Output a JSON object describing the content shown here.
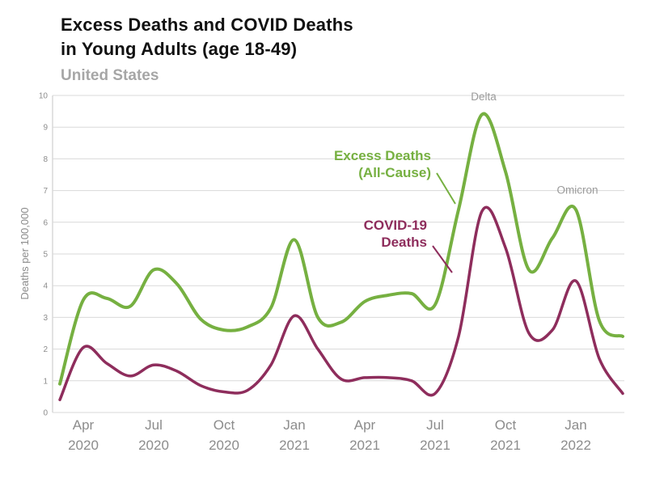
{
  "header": {
    "title_line1": "Excess Deaths and COVID Deaths",
    "title_line2": "in Young Adults (age 18-49)",
    "subtitle": "United States"
  },
  "colors": {
    "excess": "#76b041",
    "covid": "#8e2d5c",
    "grid": "#d9d9d9",
    "axis_text": "#8c8c8c",
    "annotation_text": "#9a9a9a",
    "title_text": "#111111",
    "subtitle_text": "#a6a6a6"
  },
  "legend": {
    "excess_line1": "Excess Deaths",
    "excess_line2": "(All-Cause)",
    "covid_line1": "COVID-19",
    "covid_line2": "Deaths"
  },
  "chart_data": {
    "type": "line",
    "title": "Excess Deaths and COVID Deaths in Young Adults (age 18-49)",
    "subtitle": "United States",
    "xlabel": "",
    "ylabel": "Deaths per 100,000",
    "ylim": [
      0,
      10
    ],
    "y_ticks": [
      0,
      1,
      2,
      3,
      4,
      5,
      6,
      7,
      8,
      9,
      10
    ],
    "grid": "horizontal",
    "legend_position": "inline-labels",
    "x": [
      "Mar 2020",
      "Apr 2020",
      "May 2020",
      "Jun 2020",
      "Jul 2020",
      "Aug 2020",
      "Sep 2020",
      "Oct 2020",
      "Nov 2020",
      "Dec 2020",
      "Jan 2021",
      "Feb 2021",
      "Mar 2021",
      "Apr 2021",
      "May 2021",
      "Jun 2021",
      "Jul 2021",
      "Aug 2021",
      "Sep 2021",
      "Oct 2021",
      "Nov 2021",
      "Dec 2021",
      "Jan 2022",
      "Feb 2022",
      "Mar 2022"
    ],
    "x_ticks": [
      "Apr 2020",
      "Jul 2020",
      "Oct 2020",
      "Jan 2021",
      "Apr 2021",
      "Jul 2021",
      "Oct 2021",
      "Jan 2022"
    ],
    "series": [
      {
        "name": "Excess Deaths (All-Cause)",
        "color": "#76b041",
        "values": [
          0.9,
          3.55,
          3.6,
          3.35,
          4.5,
          4.05,
          2.95,
          2.6,
          2.7,
          3.3,
          5.45,
          3.0,
          2.85,
          3.5,
          3.7,
          3.75,
          3.4,
          6.4,
          9.4,
          7.6,
          4.5,
          5.5,
          6.4,
          2.9,
          2.4
        ]
      },
      {
        "name": "COVID-19 Deaths",
        "color": "#8e2d5c",
        "values": [
          0.4,
          2.05,
          1.55,
          1.15,
          1.5,
          1.3,
          0.85,
          0.65,
          0.7,
          1.5,
          3.05,
          2.0,
          1.05,
          1.1,
          1.1,
          1.0,
          0.6,
          2.4,
          6.35,
          5.2,
          2.5,
          2.6,
          4.15,
          1.7,
          0.6
        ]
      }
    ],
    "annotations": [
      {
        "text": "Delta",
        "x": "Sep 2021",
        "y": 9.85
      },
      {
        "text": "Omicron",
        "x": "Jan 2022",
        "y": 6.9
      }
    ]
  }
}
